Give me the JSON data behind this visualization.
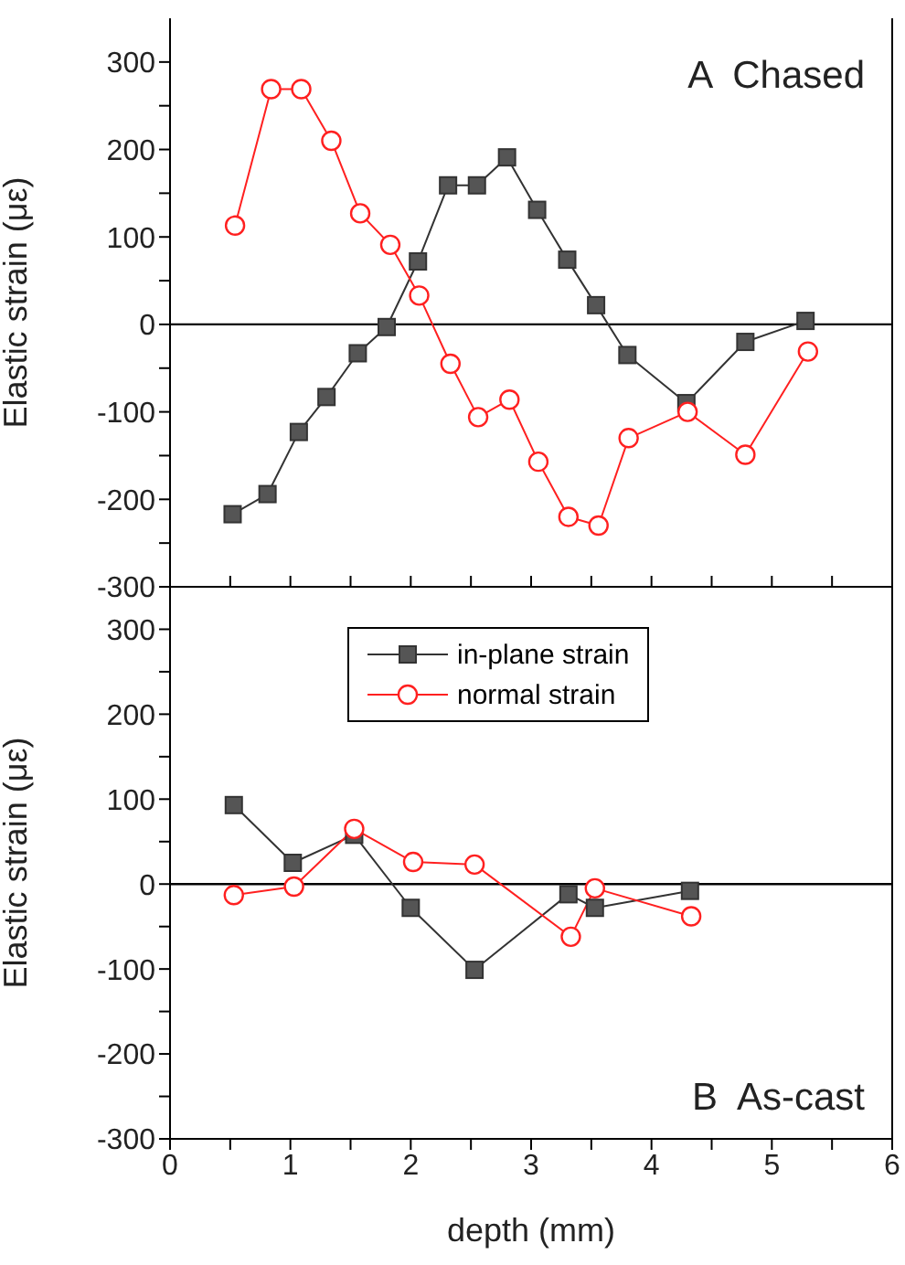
{
  "chart_data": [
    {
      "type": "line",
      "ylabel": "Elastic strain (με)",
      "annotations": [
        "A  Chased"
      ],
      "xlim": [
        0,
        6
      ],
      "xticks": [
        0,
        {
          "value": 0.5,
          "label": null
        },
        1,
        {
          "value": 1.5,
          "label": null
        },
        2,
        {
          "value": 2.5,
          "label": null
        },
        3,
        {
          "value": 3.5,
          "label": null
        },
        4,
        {
          "value": 4.5,
          "label": null
        },
        5,
        {
          "value": 5.5,
          "label": null
        },
        6
      ],
      "ylim": [
        -300,
        350
      ],
      "yticks": [
        -300,
        {
          "value": -250,
          "label": null
        },
        -200,
        {
          "value": -150,
          "label": null
        },
        -100,
        {
          "value": -50,
          "label": null
        },
        0,
        {
          "value": 50,
          "label": null
        },
        100,
        {
          "value": 150,
          "label": null
        },
        200,
        {
          "value": 250,
          "label": null
        },
        300
      ],
      "tick_labels": "y",
      "grid": false,
      "legend": false,
      "ref_lines": [
        {
          "axis": "y",
          "value": 0,
          "color": "#000000"
        }
      ],
      "series": [
        {
          "color": "#333333",
          "marker": "square",
          "x": [
            0.52,
            0.81,
            1.07,
            1.3,
            1.56,
            1.8,
            2.06,
            2.31,
            2.55,
            2.8,
            3.05,
            3.3,
            3.54,
            3.8,
            4.29,
            4.78,
            5.28
          ],
          "values": [
            -217,
            -194,
            -123,
            -83,
            -33,
            -3,
            72,
            159,
            159,
            191,
            131,
            74,
            22,
            -35,
            -90,
            -20,
            4
          ]
        },
        {
          "color": "#ff2020",
          "marker": "circle",
          "x": [
            0.54,
            0.84,
            1.09,
            1.34,
            1.58,
            1.83,
            2.07,
            2.33,
            2.56,
            2.82,
            3.06,
            3.31,
            3.56,
            3.81,
            4.3,
            4.78,
            5.3
          ],
          "values": [
            113,
            269,
            269,
            210,
            127,
            91,
            33,
            -45,
            -106,
            -86,
            -157,
            -220,
            -230,
            -130,
            -100,
            -149,
            -31
          ]
        }
      ]
    },
    {
      "type": "line",
      "xlabel": "depth (mm)",
      "ylabel": "Elastic strain (με)",
      "annotations": [
        "B  As-cast"
      ],
      "xlim": [
        0,
        6
      ],
      "xticks": [
        0,
        {
          "value": 0.5,
          "label": null
        },
        1,
        {
          "value": 1.5,
          "label": null
        },
        2,
        {
          "value": 2.5,
          "label": null
        },
        3,
        {
          "value": 3.5,
          "label": null
        },
        4,
        {
          "value": 4.5,
          "label": null
        },
        5,
        {
          "value": 5.5,
          "label": null
        },
        6
      ],
      "ylim": [
        -300,
        350
      ],
      "yticks": [
        -300,
        {
          "value": -250,
          "label": null
        },
        -200,
        {
          "value": -150,
          "label": null
        },
        -100,
        {
          "value": -50,
          "label": null
        },
        0,
        {
          "value": 50,
          "label": null
        },
        100,
        {
          "value": 150,
          "label": null
        },
        200,
        {
          "value": 250,
          "label": null
        },
        300
      ],
      "grid": false,
      "legend": "top",
      "ref_lines": [
        {
          "axis": "y",
          "value": 0,
          "color": "#000000"
        }
      ],
      "series": [
        {
          "name": "in-plane strain",
          "color": "#333333",
          "marker": "square",
          "x": [
            0.53,
            1.02,
            1.53,
            2.0,
            2.53,
            3.31,
            3.53,
            4.32
          ],
          "values": [
            93,
            25,
            58,
            -28,
            -101,
            -12,
            -28,
            -8
          ]
        },
        {
          "name": "normal strain",
          "color": "#ff2020",
          "marker": "circle",
          "x": [
            0.53,
            1.03,
            1.53,
            2.02,
            2.53,
            3.33,
            3.53,
            4.33
          ],
          "values": [
            -13,
            -3,
            65,
            26,
            23,
            -62,
            -5,
            -38
          ]
        }
      ]
    }
  ]
}
